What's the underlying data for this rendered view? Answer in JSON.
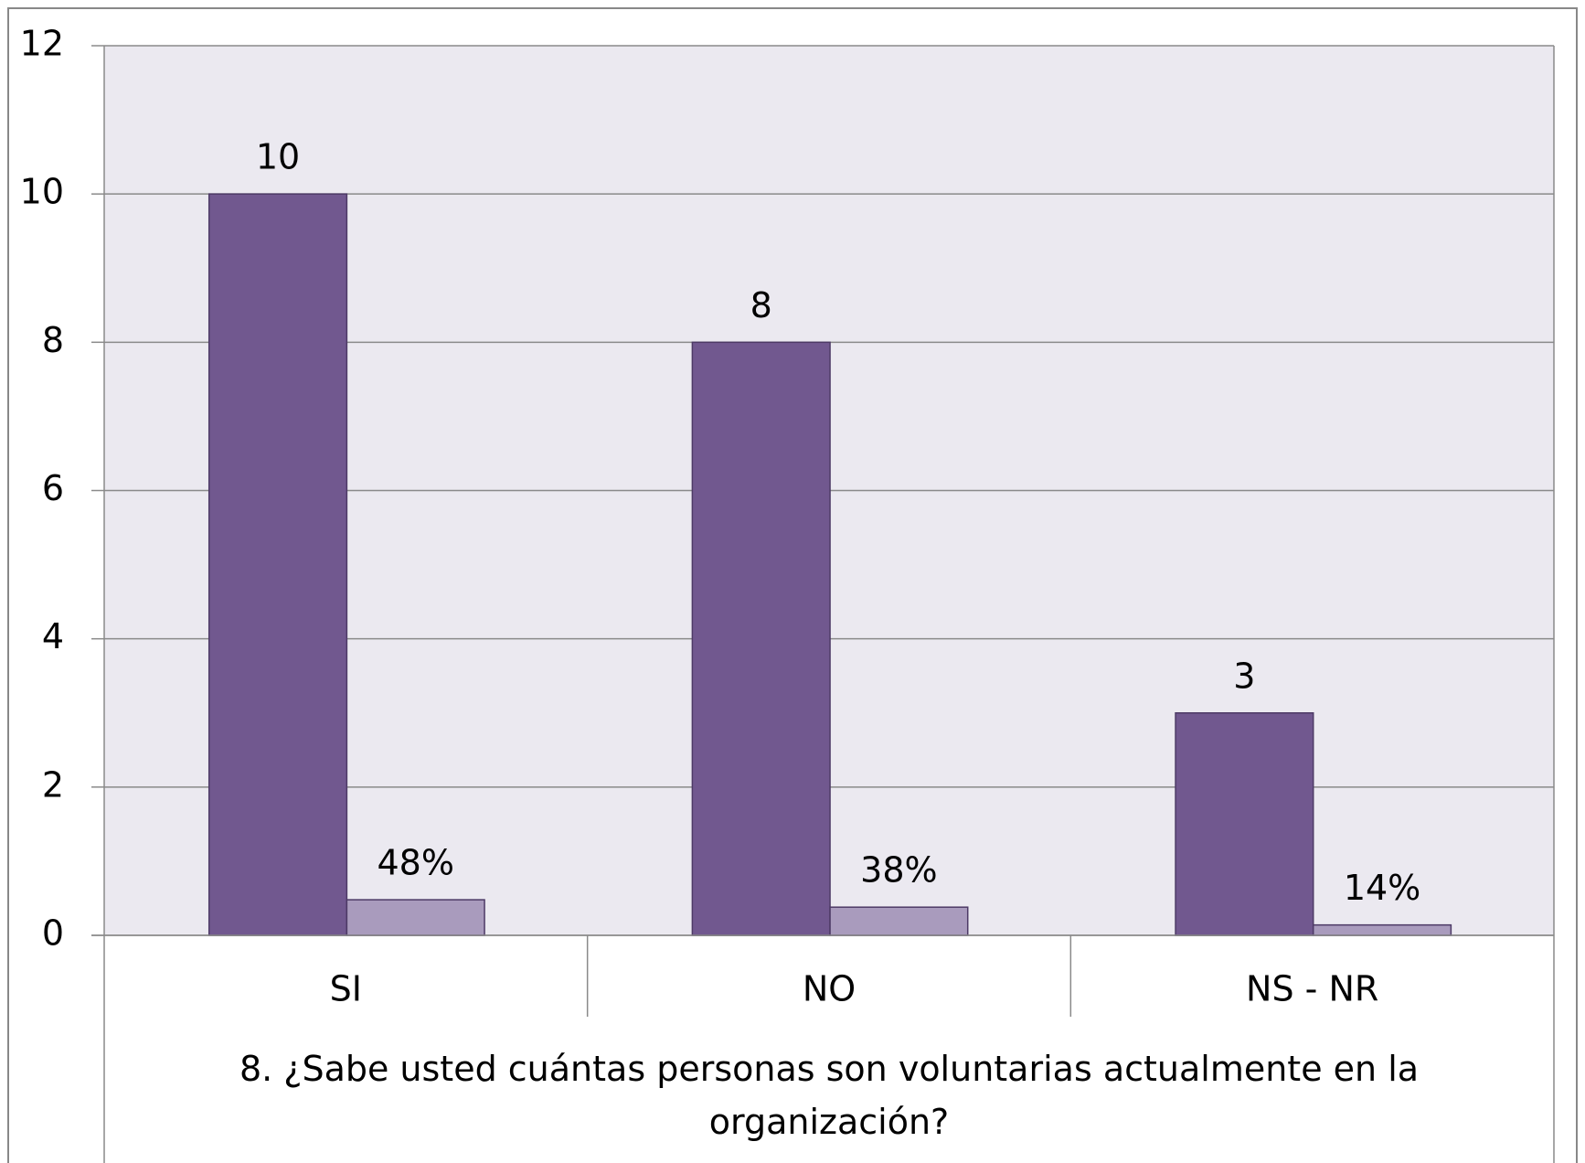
{
  "chart_data": {
    "type": "bar",
    "x_label": "8. ¿Sabe usted cuántas personas son voluntarias actualmente en la organización?",
    "categories": [
      "SI",
      "NO",
      "NS - NR"
    ],
    "series": [
      {
        "color": "#71588f",
        "values": [
          10,
          8,
          3
        ]
      },
      {
        "color": "#a99bbd",
        "values": [
          0.48,
          0.38,
          0.14
        ],
        "value_labels": [
          "48%",
          "38%",
          "14%"
        ]
      }
    ],
    "ylim": [
      0,
      12
    ],
    "yticks": [
      0,
      2,
      4,
      6,
      8,
      10,
      12
    ],
    "grid": true
  }
}
